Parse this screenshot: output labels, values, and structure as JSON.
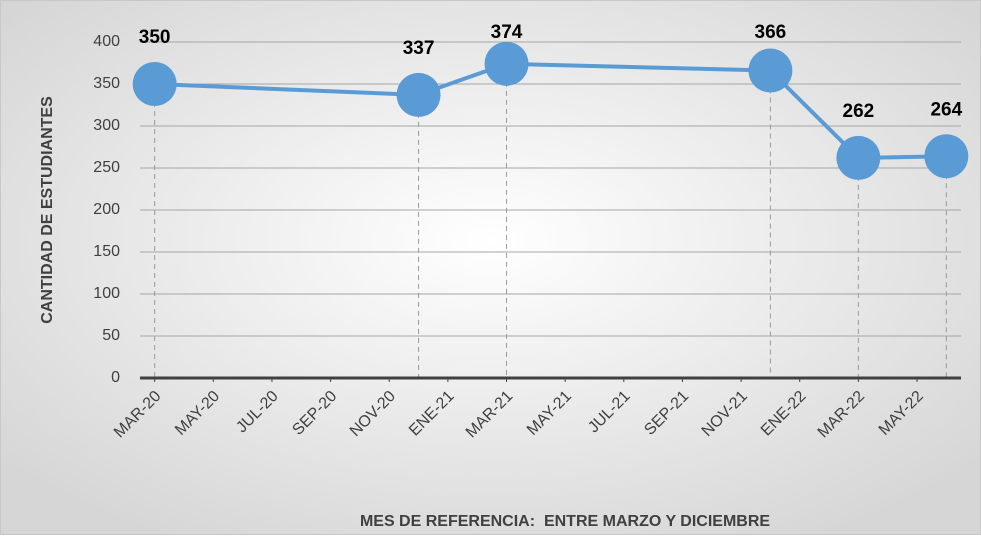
{
  "chart_data": {
    "type": "line",
    "x_label": "MES DE REFERENCIA:  ENTRE MARZO Y DICIEMBRE",
    "y_label": "CANTIDAD DE ESTUDIANTES",
    "x": [
      "2020-03",
      "2020-12",
      "2021-03",
      "2021-12",
      "2022-03",
      "2022-06"
    ],
    "series": [
      {
        "name": "CANTIDAD DE ESTUDIANTES",
        "color": "#5b9bd5",
        "values": [
          350,
          337,
          374,
          366,
          262,
          264
        ]
      }
    ],
    "xlim": [
      "2020-03",
      "2022-06"
    ],
    "xticks": [
      {
        "value": "2020-03",
        "label": "MAR-20"
      },
      {
        "value": "2020-05",
        "label": "MAY-20"
      },
      {
        "value": "2020-07",
        "label": "JUL-20"
      },
      {
        "value": "2020-09",
        "label": "SEP-20"
      },
      {
        "value": "2020-11",
        "label": "NOV-20"
      },
      {
        "value": "2021-01",
        "label": "ENE-21"
      },
      {
        "value": "2021-03",
        "label": "MAR-21"
      },
      {
        "value": "2021-05",
        "label": "MAY-21"
      },
      {
        "value": "2021-07",
        "label": "JUL-21"
      },
      {
        "value": "2021-09",
        "label": "SEP-21"
      },
      {
        "value": "2021-11",
        "label": "NOV-21"
      },
      {
        "value": "2022-01",
        "label": "ENE-22"
      },
      {
        "value": "2022-03",
        "label": "MAR-22"
      },
      {
        "value": "2022-05",
        "label": "MAY-22"
      }
    ],
    "ylim": [
      0,
      400
    ],
    "yticks": [
      0,
      50,
      100,
      150,
      200,
      250,
      300,
      350,
      400
    ],
    "grid": true,
    "drop_lines": true
  }
}
